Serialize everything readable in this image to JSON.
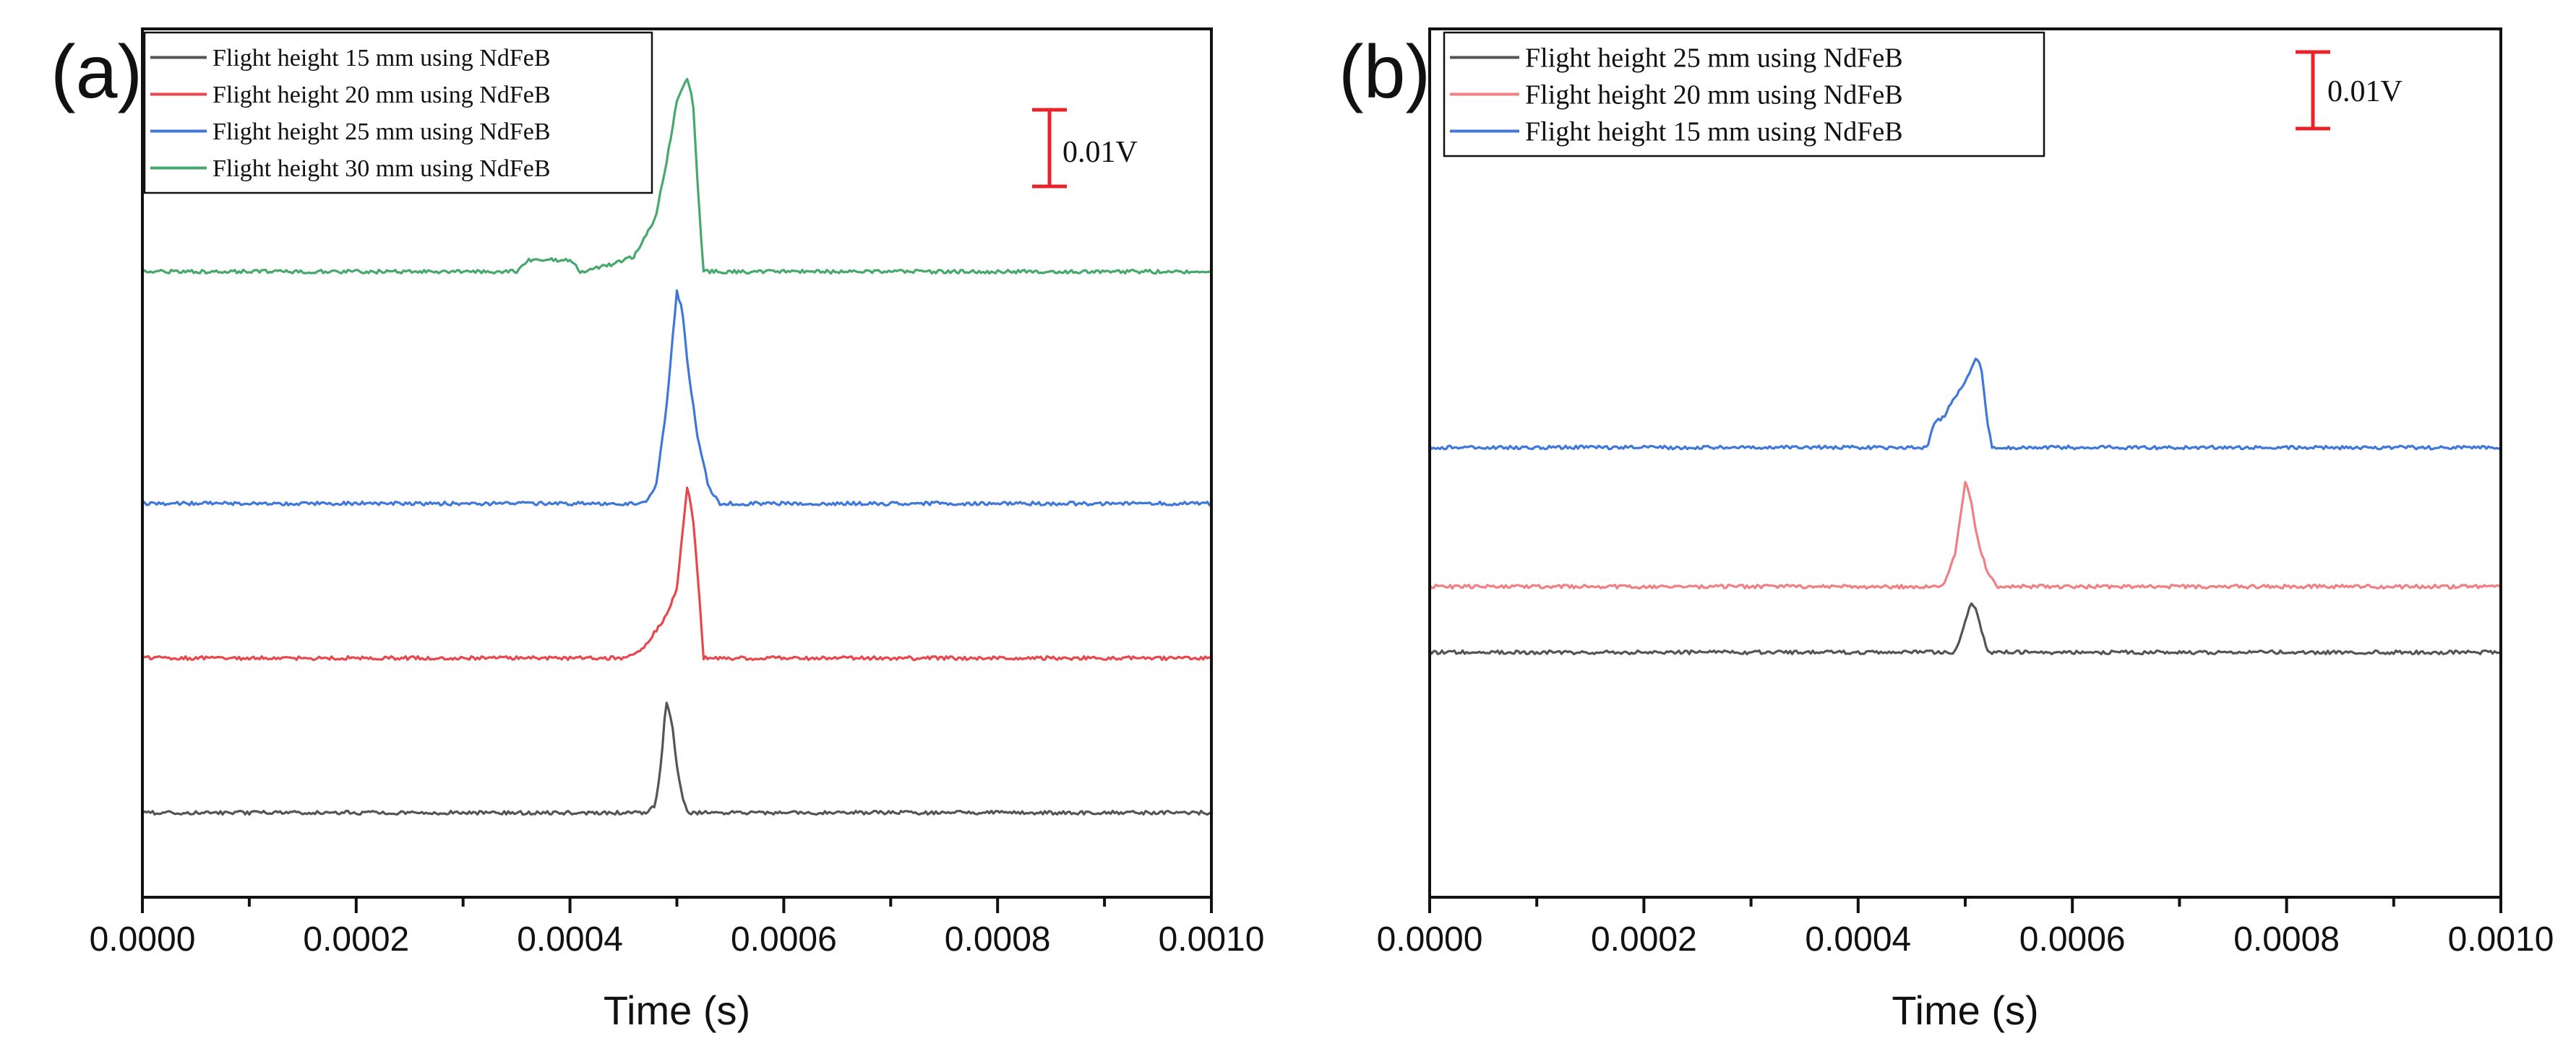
{
  "chart_data": [
    {
      "type": "line",
      "panel_label": "(a)",
      "xlabel": "Time (s)",
      "ylabel": "",
      "xlim": [
        0.0,
        0.001
      ],
      "xticks": [
        "0.0000",
        "0.0002",
        "0.0004",
        "0.0006",
        "0.0008",
        "0.0010"
      ],
      "y_axis_ticks": "none",
      "scale_bar_label": "0.01V",
      "scale_bar_color": "#e8242b",
      "grid": false,
      "legend_placement": "top-left",
      "series": [
        {
          "name": "Flight height 15 mm using NdFeB",
          "color": "#555555",
          "baseline_V": 0.0,
          "x": [
            0.0,
            0.00046,
            0.00047,
            0.00048,
            0.000485,
            0.00049,
            0.000495,
            0.0005,
            0.000505,
            0.00051,
            0.00052,
            0.001
          ],
          "y": [
            0.0,
            0.0,
            0.0,
            0.001,
            0.006,
            0.0145,
            0.012,
            0.006,
            0.002,
            0.0,
            0.0,
            0.0
          ]
        },
        {
          "name": "Flight height 20 mm using NdFeB",
          "color": "#e8474c",
          "baseline_V": 0.02,
          "x": [
            0.0,
            0.00045,
            0.00046,
            0.00047,
            0.00048,
            0.00049,
            0.0005,
            0.00051,
            0.000515,
            0.00052,
            0.000525,
            0.001
          ],
          "y": [
            0.0,
            0.0,
            0.0005,
            0.0015,
            0.0035,
            0.0055,
            0.009,
            0.0225,
            0.018,
            0.01,
            0.0,
            0.0
          ]
        },
        {
          "name": "Flight height 25 mm using NdFeB",
          "color": "#3f78d8",
          "baseline_V": 0.04,
          "x": [
            0.0,
            0.00047,
            0.00048,
            0.00049,
            0.000495,
            0.0005,
            0.000505,
            0.00051,
            0.00052,
            0.00053,
            0.00054,
            0.001
          ],
          "y": [
            0.0,
            0.0,
            0.002,
            0.012,
            0.02,
            0.0275,
            0.025,
            0.018,
            0.008,
            0.002,
            0.0,
            0.0
          ]
        },
        {
          "name": "Flight height 30 mm using NdFeB",
          "color": "#46a86c",
          "baseline_V": 0.07,
          "x": [
            0.0,
            0.00035,
            0.00036,
            0.0004,
            0.00041,
            0.00044,
            0.00046,
            0.00048,
            0.00049,
            0.0005,
            0.00051,
            0.000515,
            0.00052,
            0.000525,
            0.001
          ],
          "y": [
            0.0,
            0.0,
            0.0015,
            0.0015,
            0.0,
            0.001,
            0.002,
            0.007,
            0.014,
            0.022,
            0.025,
            0.022,
            0.01,
            0.0,
            0.0
          ]
        }
      ]
    },
    {
      "type": "line",
      "panel_label": "(b)",
      "xlabel": "Time (s)",
      "ylabel": "",
      "xlim": [
        0.0,
        0.001
      ],
      "xticks": [
        "0.0000",
        "0.0002",
        "0.0004",
        "0.0006",
        "0.0008",
        "0.0010"
      ],
      "y_axis_ticks": "none",
      "scale_bar_label": "0.01V",
      "scale_bar_color": "#e8242b",
      "grid": false,
      "legend_placement": "top-left",
      "series": [
        {
          "name": "Flight height 25 mm using NdFeB",
          "color": "#555555",
          "baseline_V": 0.0,
          "x": [
            0.0,
            0.00049,
            0.000495,
            0.0005,
            0.000505,
            0.00051,
            0.000515,
            0.00052,
            0.000525,
            0.001
          ],
          "y": [
            0.0,
            0.0,
            0.0015,
            0.004,
            0.0065,
            0.0055,
            0.003,
            0.0005,
            0.0,
            0.0
          ]
        },
        {
          "name": "Flight height 20 mm using NdFeB",
          "color": "#f08084",
          "baseline_V": 0.0085,
          "x": [
            0.0,
            0.00048,
            0.00049,
            0.000495,
            0.0005,
            0.000505,
            0.00051,
            0.00052,
            0.00053,
            0.001
          ],
          "y": [
            0.0,
            0.0,
            0.004,
            0.0085,
            0.0135,
            0.0115,
            0.007,
            0.002,
            0.0,
            0.0
          ]
        },
        {
          "name": "Flight height 15 mm using NdFeB",
          "color": "#3f78d8",
          "baseline_V": 0.0265,
          "x": [
            0.0,
            0.000465,
            0.00047,
            0.00048,
            0.00049,
            0.0005,
            0.00051,
            0.000515,
            0.00052,
            0.000525,
            0.001
          ],
          "y": [
            0.0,
            0.0,
            0.003,
            0.004,
            0.0065,
            0.0085,
            0.0115,
            0.0105,
            0.004,
            0.0,
            0.0
          ]
        }
      ]
    }
  ]
}
